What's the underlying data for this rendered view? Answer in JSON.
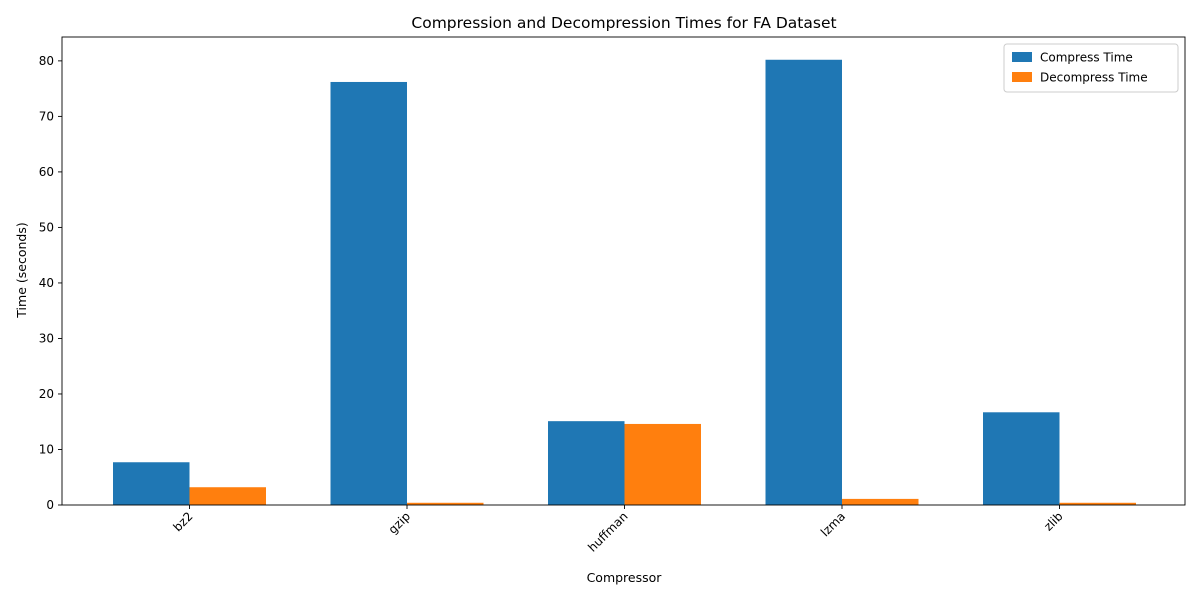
{
  "chart_data": {
    "type": "bar",
    "title": "Compression and Decompression Times for FA Dataset",
    "xlabel": "Compressor",
    "ylabel": "Time (seconds)",
    "categories": [
      "bz2",
      "gzip",
      "huffman",
      "lzma",
      "zlib"
    ],
    "series": [
      {
        "name": "Compress Time",
        "color": "#1f77b4",
        "values": [
          7.7,
          76.2,
          15.1,
          80.2,
          16.7
        ]
      },
      {
        "name": "Decompress Time",
        "color": "#ff7f0e",
        "values": [
          3.2,
          0.4,
          14.6,
          1.1,
          0.4
        ]
      }
    ],
    "ylim": [
      0,
      84.3
    ],
    "yticks": [
      0,
      10,
      20,
      30,
      40,
      50,
      60,
      70,
      80
    ],
    "grid": false,
    "legend_position": "top-right",
    "xtick_rotation": 45
  }
}
